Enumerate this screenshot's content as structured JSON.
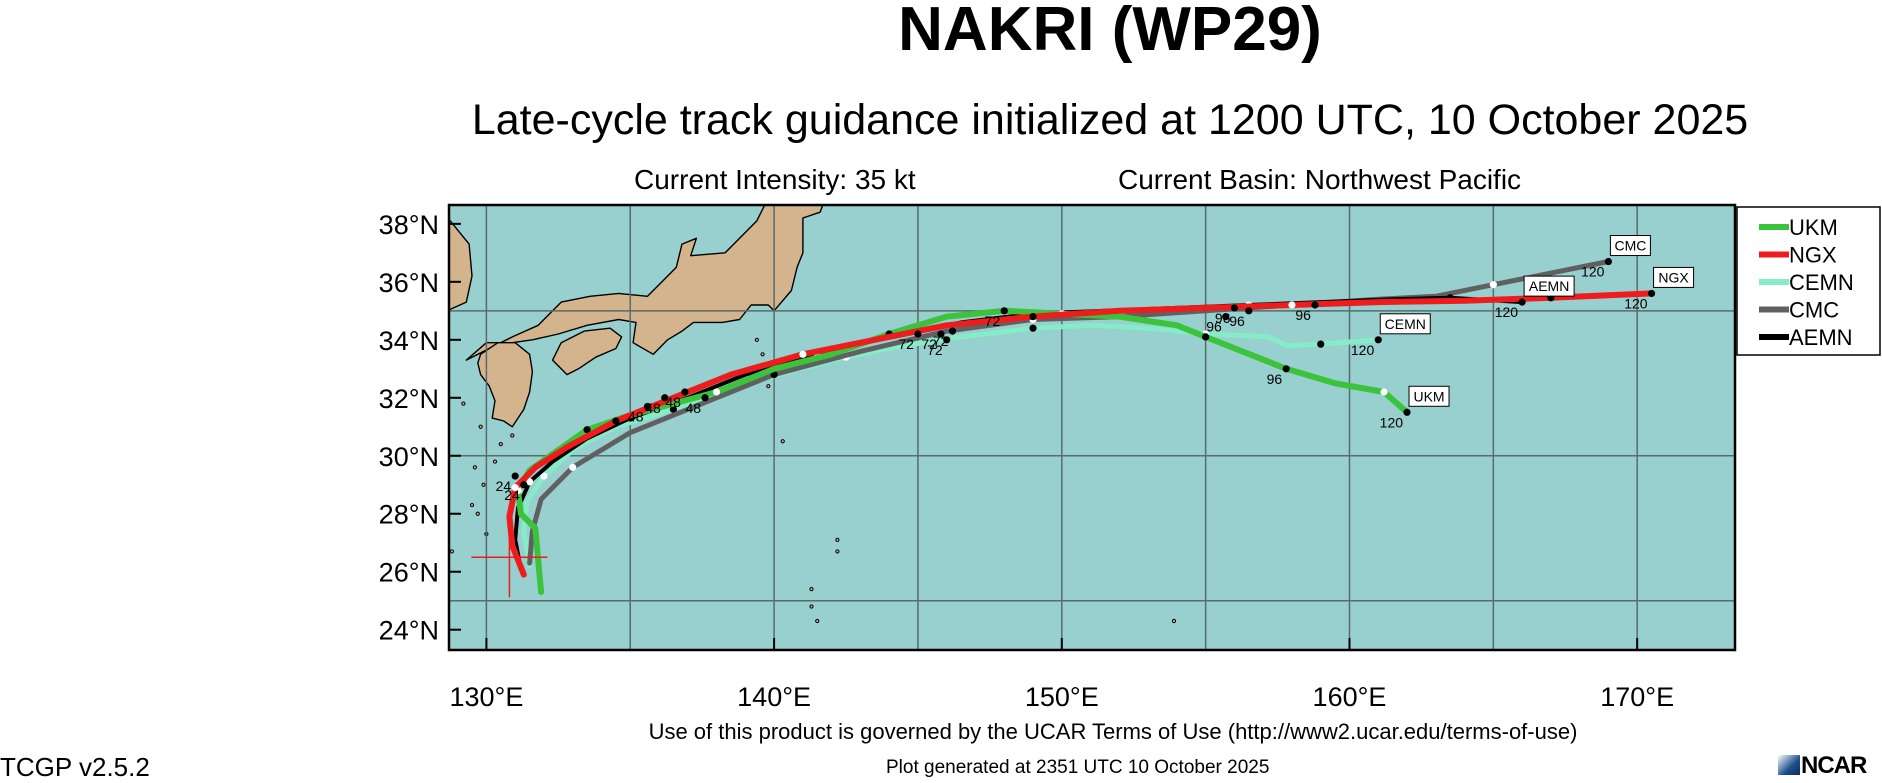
{
  "header": {
    "title": "NAKRI (WP29)",
    "subtitle": "Late-cycle track guidance initialized at 1200 UTC, 10 October 2025",
    "intensity": "Current Intensity: 35 kt",
    "basin": "Current Basin: Northwest Pacific"
  },
  "footer": {
    "terms": "Use of this product is governed by the UCAR Terms of Use (http://www2.ucar.edu/terms-of-use)",
    "generated": "Plot generated at 2351 UTC   10 October 2025",
    "version": "TCGP v2.5.2",
    "logo_text": "NCAR"
  },
  "colors": {
    "ocean": "#98cfcf",
    "land": "#d4b48c",
    "grid": "#5a6b6b",
    "UKM": "#3cc33c",
    "NGX": "#ee1c1c",
    "CEMN": "#86ecc8",
    "CMC": "#606060",
    "AEMN": "#000000",
    "current_position": "#ee1c1c"
  },
  "chart_data": {
    "type": "line",
    "title": "NAKRI (WP29)",
    "xlabel": "",
    "ylabel": "",
    "xlim": [
      128.7,
      173.4
    ],
    "ylim": [
      23.3,
      38.65
    ],
    "grid": true,
    "legend_position": "top-right (outside plot)",
    "x_ticks": [
      130,
      140,
      150,
      160,
      170
    ],
    "x_tick_labels": [
      "130°E",
      "140°E",
      "150°E",
      "160°E",
      "170°E"
    ],
    "y_ticks": [
      24,
      26,
      28,
      30,
      32,
      34,
      36,
      38
    ],
    "y_tick_labels": [
      "24°N",
      "26°N",
      "28°N",
      "30°N",
      "32°N",
      "34°N",
      "36°N",
      "38°N"
    ],
    "current_position": {
      "lon": 130.8,
      "lat": 26.5
    },
    "series": [
      {
        "name": "UKM",
        "lon": [
          131.9,
          131.7,
          131.2,
          131.1,
          131.5,
          132.5,
          133.5,
          135.0,
          136.5,
          138.0,
          140.0,
          142.0,
          144.0,
          146.0,
          148.0,
          150.0,
          152.0,
          154.0,
          155.0,
          157.8,
          159.5,
          161.2,
          162.0
        ],
        "lat": [
          25.3,
          27.5,
          28.0,
          28.8,
          29.5,
          30.2,
          30.9,
          31.4,
          31.8,
          32.2,
          33.0,
          33.5,
          34.2,
          34.8,
          35.0,
          34.9,
          34.8,
          34.5,
          34.1,
          33.0,
          32.5,
          32.2,
          31.5
        ],
        "tau_points": [
          {
            "tau": "48",
            "lon": 135.6,
            "lat": 31.7
          },
          {
            "tau": "72",
            "lon": 148.0,
            "lat": 35.0
          },
          {
            "tau": "96",
            "lon": 157.8,
            "lat": 33.0
          },
          {
            "tau": "120",
            "lon": 162.0,
            "lat": 31.5
          }
        ],
        "end_label": "UKM"
      },
      {
        "name": "NGX",
        "lon": [
          131.3,
          130.9,
          130.8,
          131.0,
          131.7,
          132.8,
          134.5,
          136.5,
          138.5,
          141.0,
          143.5,
          146.0,
          149.0,
          152.0,
          155.0,
          158.0,
          161.0,
          164.0,
          167.0,
          170.5
        ],
        "lat": [
          25.9,
          26.9,
          27.9,
          28.9,
          29.6,
          30.3,
          31.2,
          32.0,
          32.8,
          33.5,
          34.0,
          34.5,
          34.8,
          35.0,
          35.1,
          35.2,
          35.3,
          35.35,
          35.45,
          35.6
        ],
        "tau_points": [
          {
            "tau": "24",
            "lon": 131.0,
            "lat": 29.3
          },
          {
            "tau": "48",
            "lon": 136.9,
            "lat": 32.2
          },
          {
            "tau": "72",
            "lon": 146.2,
            "lat": 34.3
          },
          {
            "tau": "96",
            "lon": 156.0,
            "lat": 35.1
          },
          {
            "tau": "120",
            "lon": 170.5,
            "lat": 35.6
          }
        ],
        "end_label": "NGX"
      },
      {
        "name": "CEMN",
        "lon": [
          131.5,
          131.3,
          131.4,
          132.0,
          133.0,
          134.5,
          136.5,
          138.5,
          140.5,
          142.5,
          144.5,
          146.5,
          149.0,
          151.0,
          153.0,
          155.0,
          157.2,
          157.8,
          159.0,
          161.0
        ],
        "lat": [
          26.2,
          27.4,
          28.4,
          29.3,
          30.2,
          31.0,
          31.6,
          32.3,
          32.9,
          33.4,
          33.8,
          34.1,
          34.4,
          34.5,
          34.4,
          34.2,
          34.1,
          33.8,
          33.85,
          34.0
        ],
        "tau_points": [
          {
            "tau": "48",
            "lon": 137.6,
            "lat": 32.0
          },
          {
            "tau": "72",
            "lon": 146.0,
            "lat": 34.0
          },
          {
            "tau": "96",
            "lon": 155.7,
            "lat": 34.8
          },
          {
            "tau": "120",
            "lon": 161.0,
            "lat": 34.0
          }
        ],
        "end_label": "CEMN"
      },
      {
        "name": "CMC",
        "lon": [
          131.5,
          131.6,
          131.9,
          133.0,
          135.0,
          137.5,
          140.0,
          143.0,
          146.0,
          149.0,
          152.0,
          155.0,
          158.0,
          161.0,
          163.0,
          165.0,
          167.0,
          169.0
        ],
        "lat": [
          26.3,
          27.4,
          28.5,
          29.6,
          30.8,
          31.8,
          32.8,
          33.6,
          34.3,
          34.7,
          34.8,
          35.0,
          35.2,
          35.4,
          35.5,
          35.9,
          36.3,
          36.7
        ],
        "tau_points": [
          {
            "tau": "72",
            "lon": 145.0,
            "lat": 34.2
          },
          {
            "tau": "96",
            "lon": 156.5,
            "lat": 35.0
          },
          {
            "tau": "120",
            "lon": 169.0,
            "lat": 36.7
          }
        ],
        "end_label": "CMC"
      },
      {
        "name": "AEMN",
        "lon": [
          131.2,
          131.0,
          131.1,
          131.5,
          132.3,
          133.5,
          135.0,
          137.0,
          139.0,
          141.5,
          144.0,
          146.5,
          149.0,
          151.5,
          154.0,
          156.5,
          159.0,
          161.5,
          163.5,
          166.0
        ],
        "lat": [
          26.1,
          27.1,
          28.2,
          29.1,
          29.8,
          30.6,
          31.3,
          32.0,
          32.8,
          33.5,
          34.1,
          34.6,
          34.9,
          35.0,
          35.1,
          35.2,
          35.3,
          35.4,
          35.45,
          35.3
        ],
        "tau_points": [
          {
            "tau": "24",
            "lon": 131.3,
            "lat": 29.0
          },
          {
            "tau": "48",
            "lon": 136.2,
            "lat": 32.0
          },
          {
            "tau": "72",
            "lon": 145.8,
            "lat": 34.2
          },
          {
            "tau": "96",
            "lon": 158.8,
            "lat": 35.2
          },
          {
            "tau": "120",
            "lon": 166.0,
            "lat": 35.3
          }
        ],
        "end_label": "AEMN"
      }
    ]
  }
}
